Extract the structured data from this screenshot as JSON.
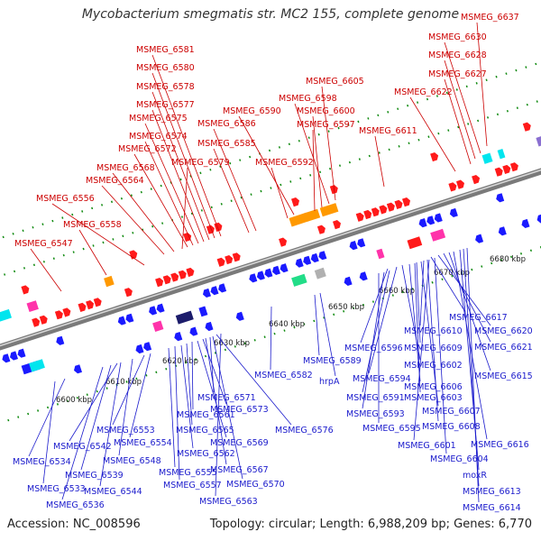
{
  "title": "Mycobacterium smegmatis str. MC2 155, complete genome",
  "accession": "Accession: NC_008596",
  "summary": "Topology: circular; Length: 6,988,209 bp; Genes: 6,770",
  "colors": {
    "forward_label": "#cc0000",
    "reverse_label": "#1a1acc",
    "backbone": "#7a7a7a",
    "forward_arrow": "#ff1a1a",
    "reverse_arrow": "#1a1aff",
    "dots": "#0f8a0f"
  },
  "tick_labels": [
    "6600 kbp",
    "6610 kbp",
    "6620 kbp",
    "6630 kbp",
    "6640 kbp",
    "6650 kbp",
    "6660 kbp",
    "6670 kbp",
    "6680 kbp"
  ],
  "forward_genes": [
    "MSMEG_6637",
    "MSMEG_6630",
    "MSMEG_6628",
    "MSMEG_6627",
    "MSMEG_6622",
    "MSMEG_6605",
    "MSMEG_6598",
    "MSMEG_6600",
    "MSMEG_6597",
    "MSMEG_6611",
    "MSMEG_6590",
    "MSMEG_6592",
    "MSMEG_6586",
    "MSMEG_6585",
    "MSMEG_6581",
    "MSMEG_6580",
    "MSMEG_6578",
    "MSMEG_6577",
    "MSMEG_6575",
    "MSMEG_6574",
    "MSMEG_6572",
    "MSMEG_6579",
    "MSMEG_6568",
    "MSMEG_6564",
    "MSMEG_6556",
    "MSMEG_6558",
    "MSMEG_6547"
  ],
  "reverse_genes": [
    "MSMEG_6617",
    "MSMEG_6620",
    "MSMEG_6621",
    "MSMEG_6610",
    "MSMEG_6609",
    "MSMEG_6596",
    "MSMEG_6602",
    "MSMEG_6589",
    "MSMEG_6594",
    "MSMEG_6615",
    "MSMEG_6606",
    "MSMEG_6582",
    "hrpA",
    "MSMEG_6591",
    "MSMEG_6603",
    "MSMEG_6607",
    "MSMEG_6593",
    "MSMEG_6595",
    "MSMEG_6608",
    "MSMEG_6601",
    "MSMEG_6616",
    "MSMEG_6604",
    "moxR",
    "MSMEG_6613",
    "MSMEG_6614",
    "MSMEG_6571",
    "MSMEG_6573",
    "MSMEG_6561",
    "MSMEG_6576",
    "MSMEG_6565",
    "MSMEG_6569",
    "MSMEG_6553",
    "MSMEG_6554",
    "MSMEG_6542",
    "MSMEG_6548",
    "MSMEG_6562",
    "MSMEG_6567",
    "MSMEG_6534",
    "MSMEG_6539",
    "MSMEG_6555",
    "MSMEG_6570",
    "MSMEG_6533",
    "MSMEG_6544",
    "MSMEG_6557",
    "MSMEG_6536",
    "MSMEG_6563"
  ]
}
